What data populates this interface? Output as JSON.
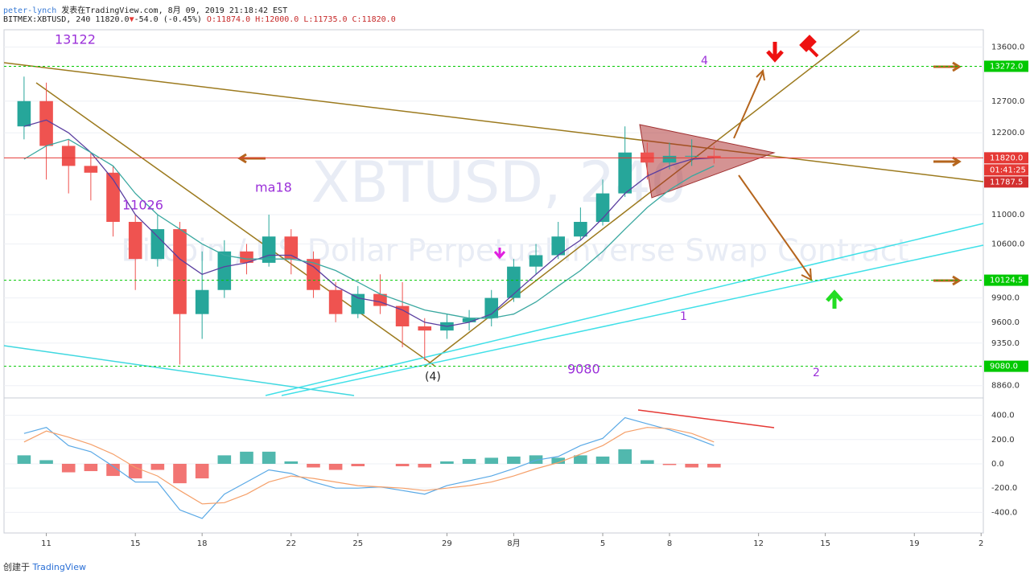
{
  "header": {
    "author": "peter-lynch",
    "published": "发表在TradingView.com, 8月 09, 2019 21:18:42 EST",
    "symbol": "BITMEX:XBTUSD, 240",
    "last": "11820.0",
    "direction": "▼",
    "change": "-54.0 (-0.45%)",
    "ohlc": "O:11874.0 H:12000.0 L:11735.0 C:11820.0"
  },
  "watermark": {
    "symbol": "XBTUSD, 240",
    "description": "Bitcoin / US Dollar Perpetual Inverse Swap Contract"
  },
  "footer": {
    "created": "创建于",
    "brand": "TradingView"
  },
  "annotations": [
    "13122",
    "11026",
    "ma18",
    "9080",
    "(4)",
    "4",
    "1",
    "2"
  ],
  "chart_data": [
    {
      "type": "candlestick",
      "x": [
        10,
        11,
        12,
        13,
        14,
        15,
        16,
        17,
        18,
        19,
        20,
        21,
        22,
        23,
        24,
        25,
        26,
        27,
        28,
        29,
        30,
        31,
        32,
        33,
        34,
        35,
        36,
        37,
        38,
        39,
        40,
        41
      ],
      "open": [
        12300,
        12700,
        12000,
        11700,
        11600,
        10900,
        10400,
        10800,
        9700,
        10000,
        10500,
        10350,
        10700,
        10400,
        10000,
        9700,
        9950,
        9800,
        9550,
        9500,
        9600,
        9650,
        9900,
        10300,
        10450,
        10700,
        10900,
        11300,
        11900,
        11750,
        11850,
        11850
      ],
      "high": [
        13100,
        13000,
        12100,
        11900,
        11700,
        11000,
        11000,
        10900,
        10500,
        10650,
        10600,
        11000,
        10800,
        10500,
        10100,
        10050,
        10200,
        10100,
        9650,
        9700,
        9750,
        10000,
        10400,
        10600,
        10900,
        11100,
        11500,
        12300,
        12050,
        12050,
        12100,
        12000
      ],
      "low": [
        12100,
        11500,
        11300,
        11200,
        10700,
        10000,
        10300,
        9100,
        9400,
        9900,
        10200,
        10300,
        10200,
        9900,
        9600,
        9650,
        9700,
        9300,
        9150,
        9400,
        9500,
        9550,
        9850,
        10200,
        10400,
        10650,
        10850,
        11250,
        11500,
        11650,
        11700,
        11735
      ],
      "close": [
        12700,
        12000,
        11700,
        11600,
        10900,
        10400,
        10800,
        9700,
        10000,
        10500,
        10350,
        10700,
        10400,
        10000,
        9700,
        9950,
        9800,
        9550,
        9500,
        9600,
        9650,
        9900,
        10300,
        10450,
        10700,
        10900,
        11300,
        11900,
        11750,
        11850,
        11850,
        11820
      ],
      "up_color": "#26a69a",
      "down_color": "#ef5350",
      "moving_averages": [
        {
          "color": "#5b3fa0",
          "values": [
            12300,
            12400,
            12200,
            11900,
            11500,
            11000,
            10700,
            10400,
            10200,
            10300,
            10350,
            10450,
            10450,
            10300,
            10050,
            9900,
            9850,
            9750,
            9600,
            9550,
            9600,
            9700,
            9950,
            10200,
            10450,
            10650,
            10950,
            11300,
            11550,
            11700,
            11800,
            11820
          ]
        },
        {
          "color": "#3aa8a0",
          "values": [
            11800,
            12000,
            12100,
            11900,
            11700,
            11300,
            11000,
            10800,
            10600,
            10450,
            10400,
            10400,
            10400,
            10350,
            10250,
            10100,
            9950,
            9850,
            9750,
            9700,
            9650,
            9650,
            9700,
            9850,
            10050,
            10250,
            10500,
            10800,
            11100,
            11350,
            11550,
            11700
          ]
        }
      ],
      "log": true,
      "grid": true,
      "xlim": [
        9.1,
        53.1
      ],
      "ylim": [
        8750,
        13900
      ],
      "yticks": [
        {
          "value": 13600,
          "label": "13600.0"
        },
        {
          "value": 12700,
          "label": "12700.0"
        },
        {
          "value": 12200,
          "label": "12200.0"
        },
        {
          "value": 11000,
          "label": "11000.0"
        },
        {
          "value": 10600,
          "label": "10600.0"
        },
        {
          "value": 9900,
          "label": "9900.0"
        },
        {
          "value": 9600,
          "label": "9600.0"
        },
        {
          "value": 9350,
          "label": "9350.0"
        },
        {
          "value": 8860,
          "label": "8860.0"
        }
      ],
      "levels": [
        {
          "value": 13272,
          "label": "13272.0",
          "color": "#00c800",
          "dash": true
        },
        {
          "value": 11820,
          "label": "11820.0",
          "color": "#e53935",
          "dash": false
        },
        {
          "value": 10124.5,
          "label": "10124.5",
          "color": "#00c800",
          "dash": true
        },
        {
          "value": 9080,
          "label": "9080.0",
          "color": "#00c800",
          "dash": true
        }
      ],
      "countdown": "01:41:25",
      "bid": {
        "value": 11787.5,
        "label": "11787.5"
      }
    },
    {
      "type": "macd",
      "x": [
        10,
        11,
        12,
        13,
        14,
        15,
        16,
        17,
        18,
        19,
        20,
        21,
        22,
        23,
        24,
        25,
        26,
        27,
        28,
        29,
        30,
        31,
        32,
        33,
        34,
        35,
        36,
        37,
        38,
        39,
        40,
        41
      ],
      "histogram": [
        70,
        30,
        -70,
        -60,
        -100,
        -120,
        -50,
        -160,
        -120,
        70,
        100,
        100,
        20,
        -30,
        -50,
        -20,
        0,
        -20,
        -30,
        20,
        40,
        50,
        60,
        70,
        50,
        70,
        60,
        120,
        30,
        -10,
        -30,
        -30
      ],
      "series": [
        {
          "color": "#5aa9e6",
          "values": [
            250,
            300,
            150,
            100,
            -20,
            -150,
            -150,
            -380,
            -450,
            -250,
            -150,
            -50,
            -80,
            -150,
            -200,
            -200,
            -190,
            -220,
            -250,
            -180,
            -140,
            -100,
            -40,
            30,
            60,
            150,
            210,
            380,
            330,
            280,
            220,
            150
          ]
        },
        {
          "color": "#f5a06a",
          "values": [
            180,
            270,
            220,
            160,
            80,
            -30,
            -100,
            -220,
            -330,
            -320,
            -250,
            -150,
            -100,
            -120,
            -150,
            -180,
            -190,
            -200,
            -220,
            -200,
            -180,
            -150,
            -100,
            -40,
            10,
            80,
            150,
            260,
            300,
            290,
            250,
            180
          ]
        }
      ],
      "pos_color": "#26a69a",
      "neg_color": "#ef5350",
      "xlim": [
        9.1,
        53.1
      ],
      "ylim": [
        -570,
        510
      ],
      "yticks": [
        {
          "value": 400,
          "label": "400.0"
        },
        {
          "value": 200,
          "label": "200.0"
        },
        {
          "value": 0,
          "label": "0.0"
        },
        {
          "value": -200,
          "label": "-200.0"
        },
        {
          "value": -400,
          "label": "-400.0"
        }
      ],
      "xticks": [
        11,
        15,
        18,
        22,
        25,
        29,
        {
          "value": 32,
          "label": "8月"
        },
        {
          "value": 36,
          "label": "5"
        },
        {
          "value": 39,
          "label": "8"
        },
        {
          "value": 43,
          "label": "12"
        },
        {
          "value": 46,
          "label": "15"
        },
        {
          "value": 50,
          "label": "19"
        },
        {
          "value": 53,
          "label": "2"
        }
      ]
    }
  ]
}
